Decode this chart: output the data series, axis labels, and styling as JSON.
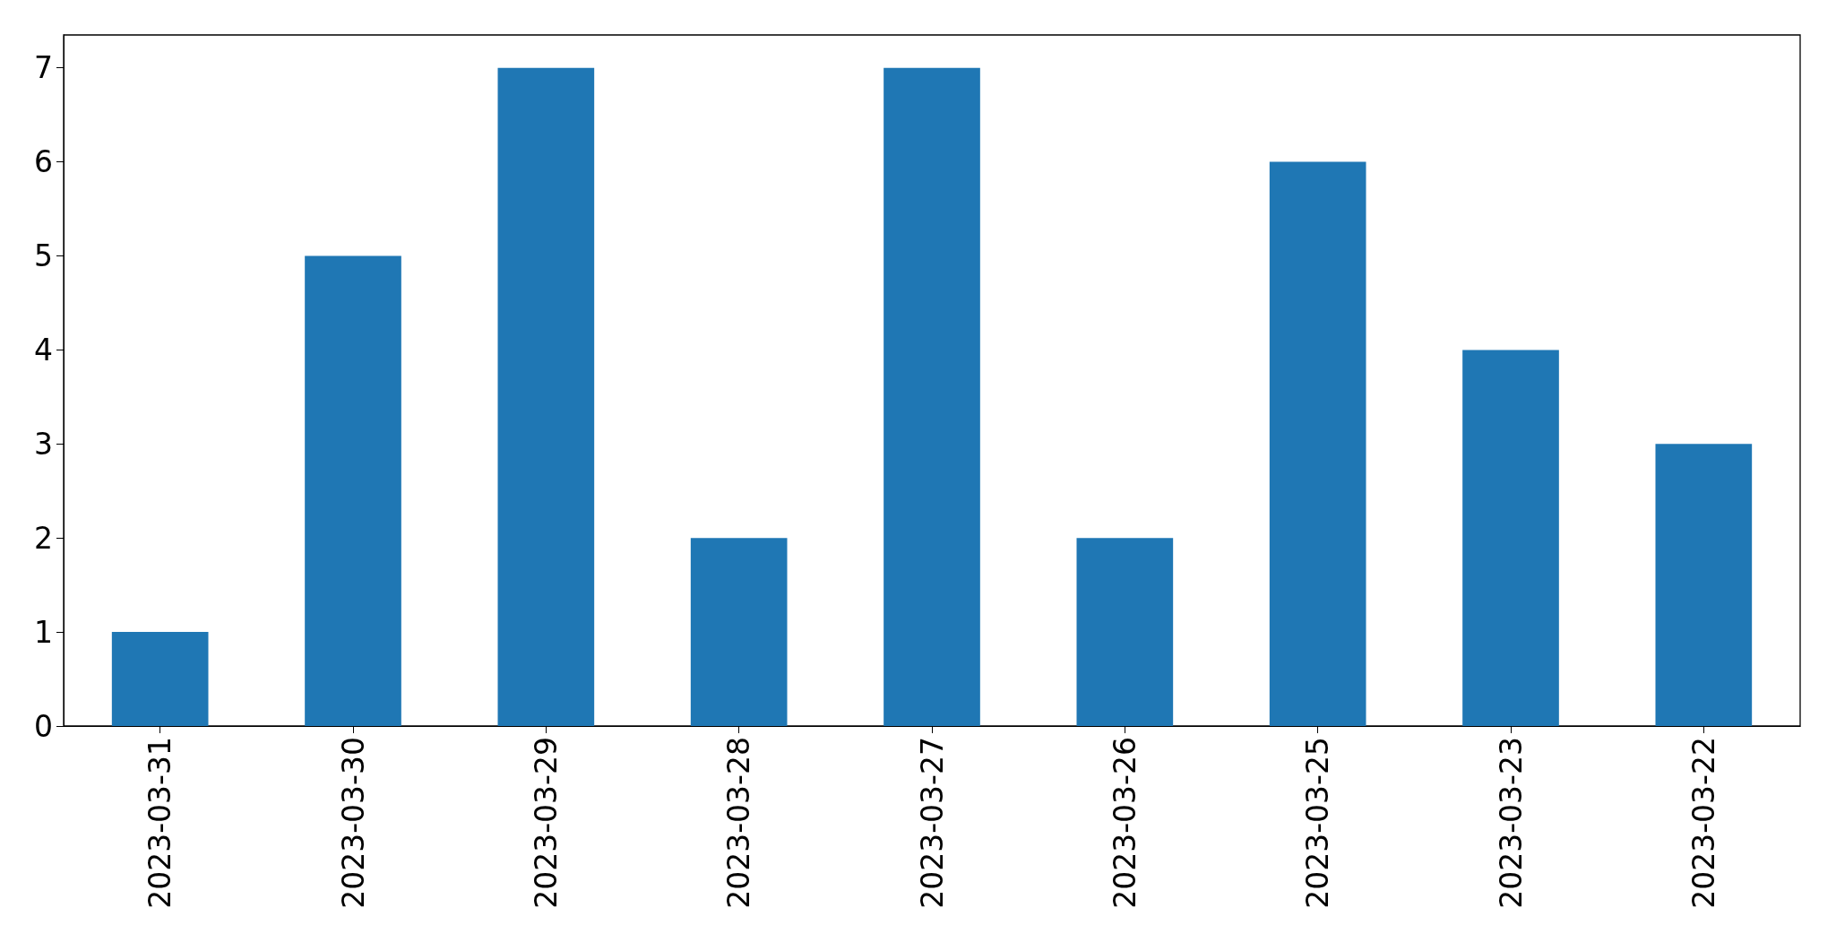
{
  "chart_data": {
    "type": "bar",
    "categories": [
      "2023-03-31",
      "2023-03-30",
      "2023-03-29",
      "2023-03-28",
      "2023-03-27",
      "2023-03-26",
      "2023-03-25",
      "2023-03-23",
      "2023-03-22"
    ],
    "values": [
      1,
      5,
      7,
      2,
      7,
      2,
      6,
      4,
      3
    ],
    "color": "#1f77b4",
    "ylim": [
      0,
      7.35
    ],
    "yticks": [
      0,
      1,
      2,
      3,
      4,
      5,
      6,
      7
    ],
    "grid": false
  }
}
